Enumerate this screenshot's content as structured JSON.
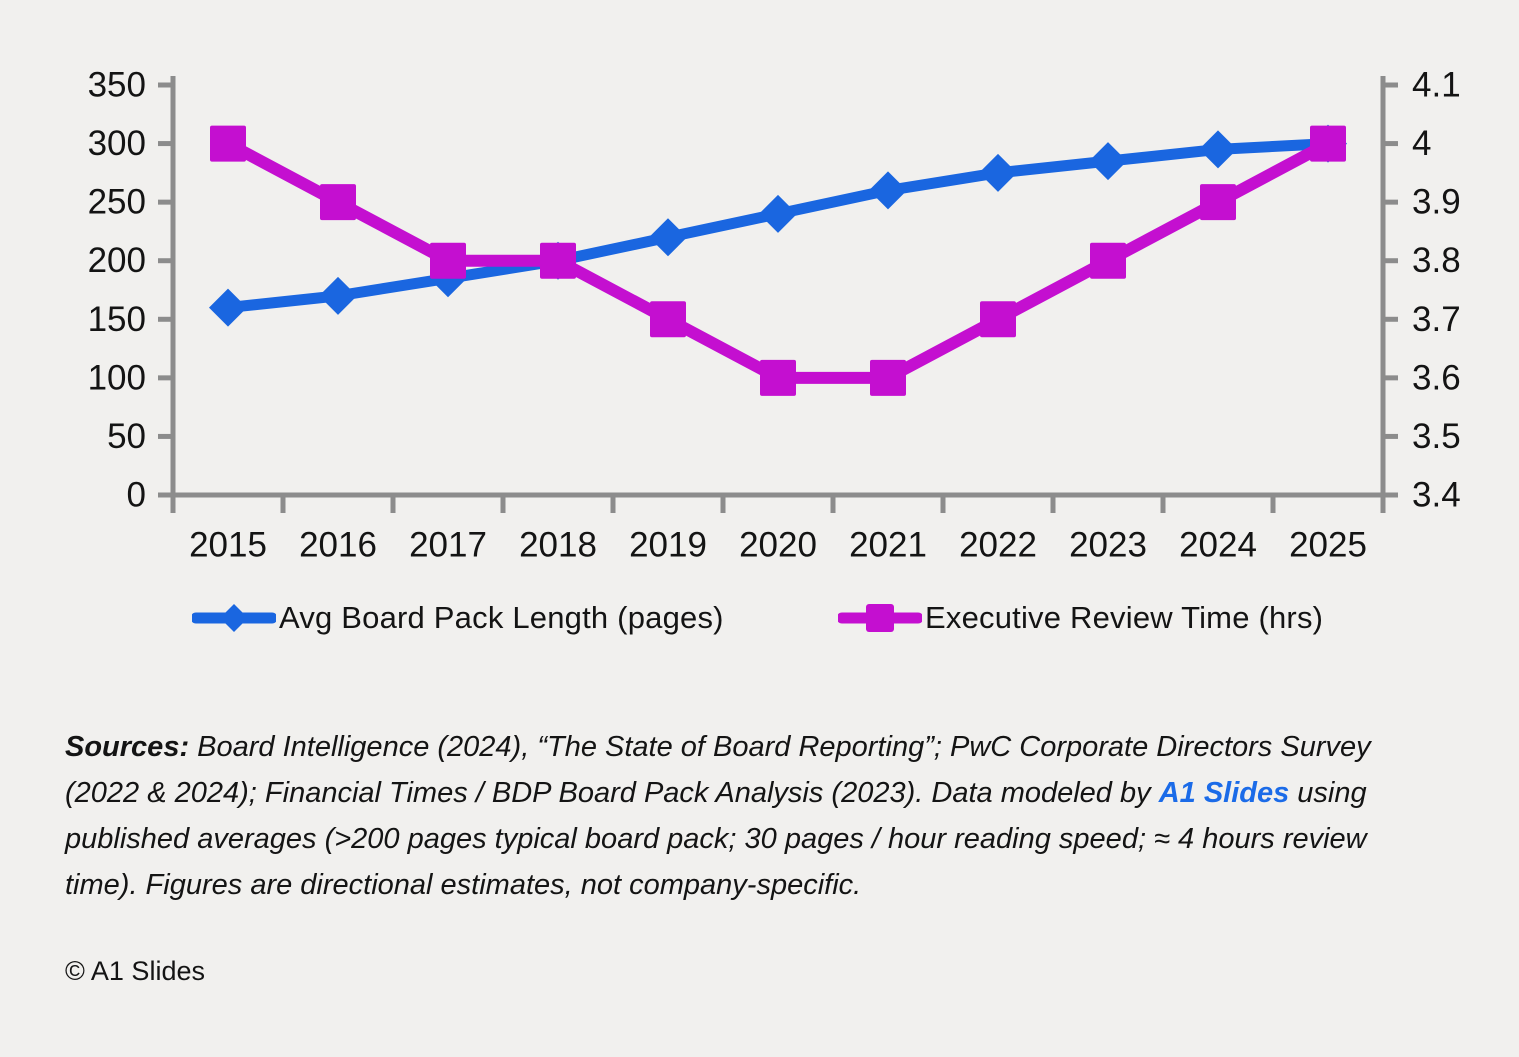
{
  "page": {
    "background": "#F1F0EE"
  },
  "chart_data": {
    "type": "line",
    "title": "",
    "categories": [
      "2015",
      "2016",
      "2017",
      "2018",
      "2019",
      "2020",
      "2021",
      "2022",
      "2023",
      "2024",
      "2025"
    ],
    "series": [
      {
        "name": "Avg Board Pack Length (pages)",
        "axis": "left",
        "color": "#1A66E0",
        "marker": "diamond",
        "values": [
          160,
          170,
          185,
          200,
          220,
          240,
          260,
          275,
          285,
          295,
          300
        ]
      },
      {
        "name": "Executive Review Time (hrs)",
        "axis": "right",
        "color": "#C40FD0",
        "marker": "square",
        "values": [
          4.0,
          3.9,
          3.8,
          3.8,
          3.7,
          3.6,
          3.6,
          3.7,
          3.8,
          3.9,
          4.0
        ]
      }
    ],
    "left_axis": {
      "min": 0,
      "max": 350,
      "step": 50,
      "tick_labels": [
        "350",
        "300",
        "250",
        "200",
        "150",
        "100",
        "50",
        "0"
      ]
    },
    "right_axis": {
      "min": 3.4,
      "max": 4.1,
      "step": 0.1,
      "tick_labels": [
        "4.1",
        "4",
        "3.9",
        "3.8",
        "3.7",
        "3.6",
        "3.5",
        "3.4"
      ]
    },
    "grid": false,
    "legend_position": "bottom",
    "axis_color": "#8C8C8C",
    "text_color": "#141414"
  },
  "source_note": {
    "label": "Sources:",
    "text_before_brand": " Board Intelligence (2024), “The State of Board Reporting”; PwC Corporate Directors Survey (2022 & 2024); Financial Times / BDP Board Pack Analysis (2023). Data modeled by ",
    "brand": "A1 Slides",
    "brand_color": "#1B6BE8",
    "text_after_brand": " using published averages (>200 pages typical board pack; 30 pages / hour reading speed; ≈ 4 hours review time). Figures are directional estimates, not company-specific."
  },
  "copyright": "© A1 Slides"
}
